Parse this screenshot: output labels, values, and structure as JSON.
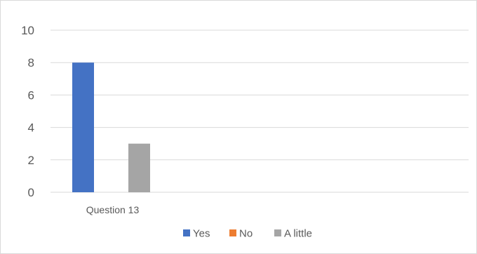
{
  "chart_data": {
    "type": "bar",
    "categories": [
      "Question 13"
    ],
    "series": [
      {
        "name": "Yes",
        "values": [
          8
        ],
        "color": "#4472C4"
      },
      {
        "name": "No",
        "values": [
          0
        ],
        "color": "#ED7D31"
      },
      {
        "name": "A little",
        "values": [
          3
        ],
        "color": "#A5A5A5"
      }
    ],
    "title": "",
    "xlabel": "",
    "ylabel": "",
    "ylim": [
      0,
      10
    ],
    "yticks": [
      0,
      2,
      4,
      6,
      8,
      10
    ],
    "grid": true,
    "gridColor": "#d9d9d9",
    "legend": "bottom"
  }
}
